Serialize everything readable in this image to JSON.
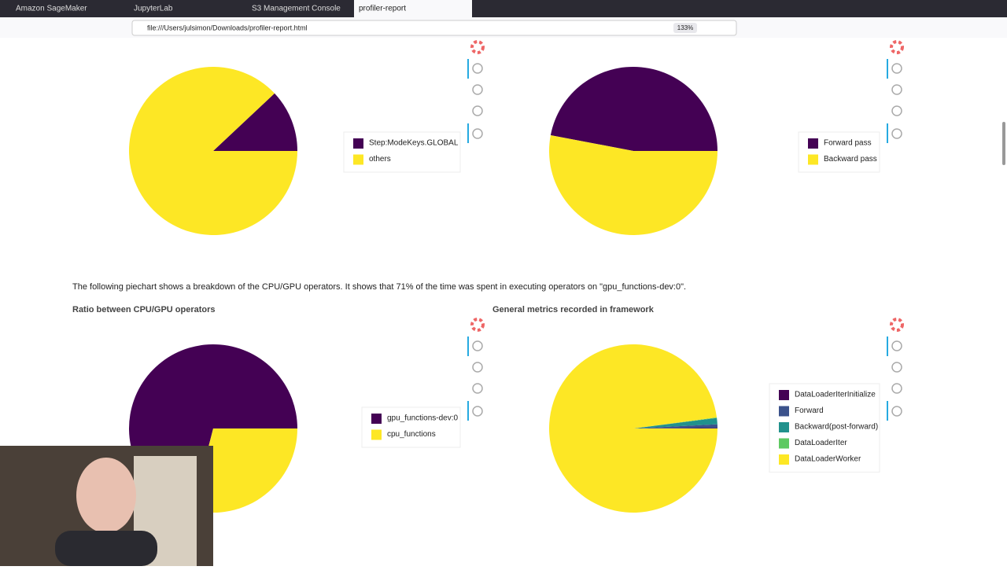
{
  "browser": {
    "tabs": [
      "Amazon SageMaker",
      "JupyterLab",
      "S3 Management Console",
      "profiler-report"
    ],
    "url": "file:///Users/julsimon/Downloads/profiler-report.html",
    "zoom": "133%"
  },
  "paragraph": "The following piechart shows a breakdown of the CPU/GPU operators. It shows that 71% of the time was spent in executing operators on \"gpu_functions-dev:0\".",
  "chart_data": [
    {
      "type": "pie",
      "categories": [
        "Step:ModeKeys.GLOBAL",
        "others"
      ],
      "values": [
        12,
        88
      ],
      "colors": [
        "#440154",
        "#fde725"
      ]
    },
    {
      "type": "pie",
      "categories": [
        "Forward pass",
        "Backward pass"
      ],
      "values": [
        47,
        53
      ],
      "colors": [
        "#440154",
        "#fde725"
      ]
    },
    {
      "type": "pie",
      "title": "Ratio between CPU/GPU operators",
      "categories": [
        "gpu_functions-dev:0",
        "cpu_functions"
      ],
      "values": [
        71,
        29
      ],
      "colors": [
        "#440154",
        "#fde725"
      ]
    },
    {
      "type": "pie",
      "title": "General metrics recorded in framework",
      "categories": [
        "DataLoaderIterInitialize",
        "Forward",
        "Backward(post-forward)",
        "DataLoaderIter",
        "DataLoaderWorker"
      ],
      "values": [
        0.1,
        0.7,
        1.2,
        0.1,
        97.9
      ],
      "colors": [
        "#440154",
        "#3b528b",
        "#21918c",
        "#5ec962",
        "#fde725"
      ]
    }
  ]
}
